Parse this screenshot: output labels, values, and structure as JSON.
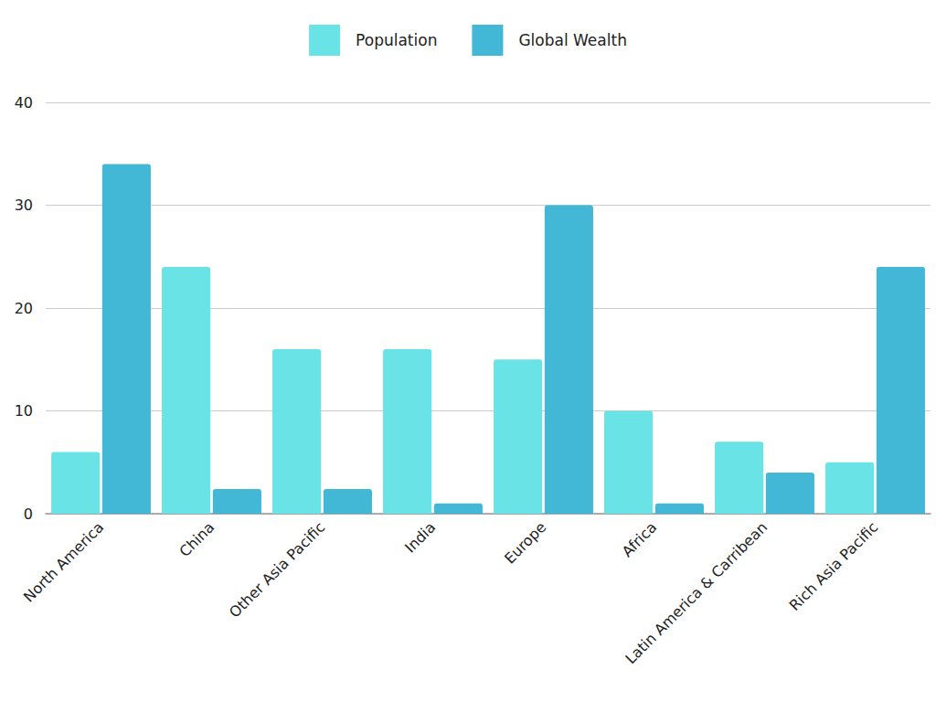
{
  "chart_data": {
    "type": "bar",
    "categories": [
      "North America",
      "China",
      "Other Asia Pacific",
      "India",
      "Europe",
      "Africa",
      "Latin America & Carribean",
      "Rich Asia Pacific"
    ],
    "series": [
      {
        "name": "Population",
        "color": "#6ae3e6",
        "values": [
          6,
          24,
          16,
          16,
          15,
          10,
          7,
          5
        ]
      },
      {
        "name": "Global Wealth",
        "color": "#42b8d6",
        "values": [
          34,
          2.4,
          2.4,
          1,
          30,
          1,
          4,
          24
        ]
      }
    ],
    "ylim": [
      0,
      40
    ],
    "yticks": [
      0,
      10,
      20,
      30,
      40
    ],
    "grid": true,
    "legend": "top"
  }
}
